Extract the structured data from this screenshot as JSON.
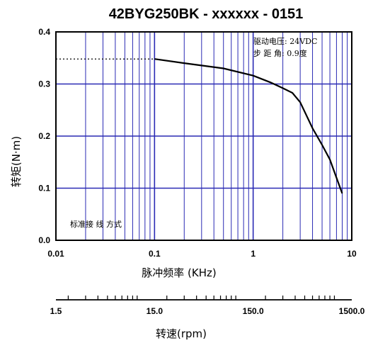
{
  "chart_data": {
    "type": "line",
    "title": "42BYG250BK - xxxxxx - 0151",
    "xlabel": "脉冲频率 (KHz)",
    "ylabel": "转矩(N·m)",
    "x_scale": "log",
    "xlim": [
      0.01,
      10
    ],
    "ylim": [
      0,
      0.4
    ],
    "x_ticks": [
      "0.01",
      "0.1",
      "1",
      "10"
    ],
    "y_ticks": [
      "0.0",
      "0.1",
      "0.2",
      "0.3",
      "0.4"
    ],
    "grid": true,
    "grid_color": "#2a2ab4",
    "line_color": "#000000",
    "series": [
      {
        "x": [
          0.1,
          0.2,
          0.5,
          1.0,
          1.5,
          2.0,
          2.5,
          3.0,
          4.0,
          5.0,
          6.0,
          7.0,
          8.0
        ],
        "y": [
          0.348,
          0.34,
          0.33,
          0.316,
          0.303,
          0.292,
          0.283,
          0.265,
          0.215,
          0.183,
          0.155,
          0.12,
          0.09
        ]
      }
    ],
    "dotted_start": {
      "x": 0.01,
      "y": 0.348
    },
    "annotations": {
      "voltage": "驱动电压: 24VDC",
      "step_angle": "步 距 角: 0.9度",
      "wiring": "标准接 线 方式"
    },
    "speed_axis": {
      "label": "转速(rpm)",
      "ticks": [
        "1.5",
        "15.0",
        "150.0",
        "1500.0"
      ]
    }
  }
}
